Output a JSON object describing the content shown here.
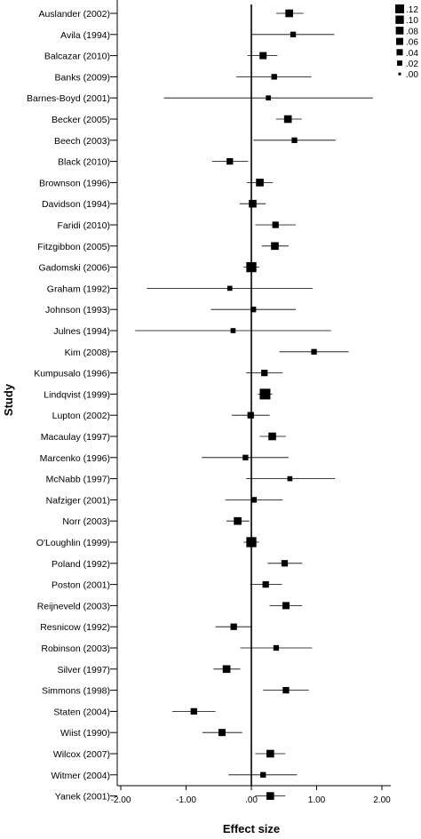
{
  "chart_data": {
    "type": "forest",
    "xlabel": "Effect size",
    "ylabel": "Study",
    "xlim": [
      -2.0,
      2.0
    ],
    "x_ticks": [
      "-2.00",
      "-1.00",
      ".00",
      "1.00",
      "2.00"
    ],
    "x_tick_values": [
      -2.0,
      -1.0,
      0.0,
      1.0,
      2.0
    ],
    "reference_line": 0.0,
    "legend_placement": "top-right",
    "legend": [
      {
        "label": ".12",
        "weight": 0.12
      },
      {
        "label": ".10",
        "weight": 0.1
      },
      {
        "label": ".08",
        "weight": 0.08
      },
      {
        "label": ".06",
        "weight": 0.06
      },
      {
        "label": ".04",
        "weight": 0.04
      },
      {
        "label": ".02",
        "weight": 0.02
      },
      {
        "label": ".00",
        "weight": 0.0
      }
    ],
    "studies": [
      {
        "name": "Auslander (2002)",
        "effect": 0.58,
        "lower": 0.38,
        "upper": 0.8,
        "weight": 0.04
      },
      {
        "name": "Avila (1994)",
        "effect": 0.64,
        "lower": 0.01,
        "upper": 1.27,
        "weight": 0.01
      },
      {
        "name": "Balcazar (2010)",
        "effect": 0.18,
        "lower": -0.06,
        "upper": 0.4,
        "weight": 0.03
      },
      {
        "name": "Banks (2009)",
        "effect": 0.35,
        "lower": -0.23,
        "upper": 0.92,
        "weight": 0.01
      },
      {
        "name": "Barnes-Boyd (2001)",
        "effect": 0.26,
        "lower": -1.34,
        "upper": 1.86,
        "weight": 0.005
      },
      {
        "name": "Becker (2005)",
        "effect": 0.56,
        "lower": 0.38,
        "upper": 0.77,
        "weight": 0.04
      },
      {
        "name": "Beech (2003)",
        "effect": 0.66,
        "lower": 0.03,
        "upper": 1.29,
        "weight": 0.01
      },
      {
        "name": "Black (2010)",
        "effect": -0.33,
        "lower": -0.6,
        "upper": -0.05,
        "weight": 0.02
      },
      {
        "name": "Brownson (1996)",
        "effect": 0.13,
        "lower": -0.07,
        "upper": 0.33,
        "weight": 0.04
      },
      {
        "name": "Davidson (1994)",
        "effect": 0.02,
        "lower": -0.18,
        "upper": 0.22,
        "weight": 0.04
      },
      {
        "name": "Faridi (2010)",
        "effect": 0.37,
        "lower": 0.06,
        "upper": 0.68,
        "weight": 0.02
      },
      {
        "name": "Fitzgibbon (2005)",
        "effect": 0.36,
        "lower": 0.16,
        "upper": 0.57,
        "weight": 0.04
      },
      {
        "name": "Gadomski (2006)",
        "effect": 0.0,
        "lower": -0.12,
        "upper": 0.12,
        "weight": 0.1
      },
      {
        "name": "Graham (1992)",
        "effect": -0.33,
        "lower": -1.6,
        "upper": 0.94,
        "weight": 0.005
      },
      {
        "name": "Johnson (1993)",
        "effect": 0.03,
        "lower": -0.62,
        "upper": 0.68,
        "weight": 0.01
      },
      {
        "name": "Julnes (1994)",
        "effect": -0.28,
        "lower": -1.78,
        "upper": 1.22,
        "weight": 0.005
      },
      {
        "name": "Kim (2008)",
        "effect": 0.96,
        "lower": 0.43,
        "upper": 1.49,
        "weight": 0.01
      },
      {
        "name": "Kumpusalo (1996)",
        "effect": 0.2,
        "lower": -0.08,
        "upper": 0.48,
        "weight": 0.02
      },
      {
        "name": "Lindqvist (1999)",
        "effect": 0.21,
        "lower": 0.1,
        "upper": 0.32,
        "weight": 0.12
      },
      {
        "name": "Lupton (2002)",
        "effect": -0.01,
        "lower": -0.3,
        "upper": 0.28,
        "weight": 0.02
      },
      {
        "name": "Macaulay (1997)",
        "effect": 0.32,
        "lower": 0.13,
        "upper": 0.53,
        "weight": 0.04
      },
      {
        "name": "Marcenko (1996)",
        "effect": -0.09,
        "lower": -0.76,
        "upper": 0.57,
        "weight": 0.01
      },
      {
        "name": "McNabb (1997)",
        "effect": 0.59,
        "lower": -0.08,
        "upper": 1.28,
        "weight": 0.005
      },
      {
        "name": "Nafziger (2001)",
        "effect": 0.04,
        "lower": -0.4,
        "upper": 0.48,
        "weight": 0.01
      },
      {
        "name": "Norr (2003)",
        "effect": -0.21,
        "lower": -0.38,
        "upper": -0.03,
        "weight": 0.04
      },
      {
        "name": "O'Loughlin (1999)",
        "effect": 0.0,
        "lower": -0.12,
        "upper": 0.12,
        "weight": 0.1
      },
      {
        "name": "Poland (1992)",
        "effect": 0.51,
        "lower": 0.25,
        "upper": 0.78,
        "weight": 0.02
      },
      {
        "name": "Poston (2001)",
        "effect": 0.22,
        "lower": -0.02,
        "upper": 0.47,
        "weight": 0.02
      },
      {
        "name": "Reijneveld (2003)",
        "effect": 0.53,
        "lower": 0.28,
        "upper": 0.78,
        "weight": 0.03
      },
      {
        "name": "Resnicow (1992)",
        "effect": -0.27,
        "lower": -0.55,
        "upper": 0.01,
        "weight": 0.02
      },
      {
        "name": "Robinson (2003)",
        "effect": 0.38,
        "lower": -0.17,
        "upper": 0.93,
        "weight": 0.01
      },
      {
        "name": "Silver (1997)",
        "effect": -0.38,
        "lower": -0.58,
        "upper": -0.17,
        "weight": 0.04
      },
      {
        "name": "Simmons (1998)",
        "effect": 0.53,
        "lower": 0.18,
        "upper": 0.88,
        "weight": 0.02
      },
      {
        "name": "Staten (2004)",
        "effect": -0.88,
        "lower": -1.21,
        "upper": -0.55,
        "weight": 0.02
      },
      {
        "name": "Wiist (1990)",
        "effect": -0.45,
        "lower": -0.75,
        "upper": -0.14,
        "weight": 0.03
      },
      {
        "name": "Wilcox (2007)",
        "effect": 0.29,
        "lower": 0.06,
        "upper": 0.52,
        "weight": 0.04
      },
      {
        "name": "Witmer (2004)",
        "effect": 0.18,
        "lower": -0.35,
        "upper": 0.7,
        "weight": 0.01
      },
      {
        "name": "Yanek (2001)",
        "effect": 0.29,
        "lower": 0.06,
        "upper": 0.52,
        "weight": 0.04
      }
    ]
  }
}
